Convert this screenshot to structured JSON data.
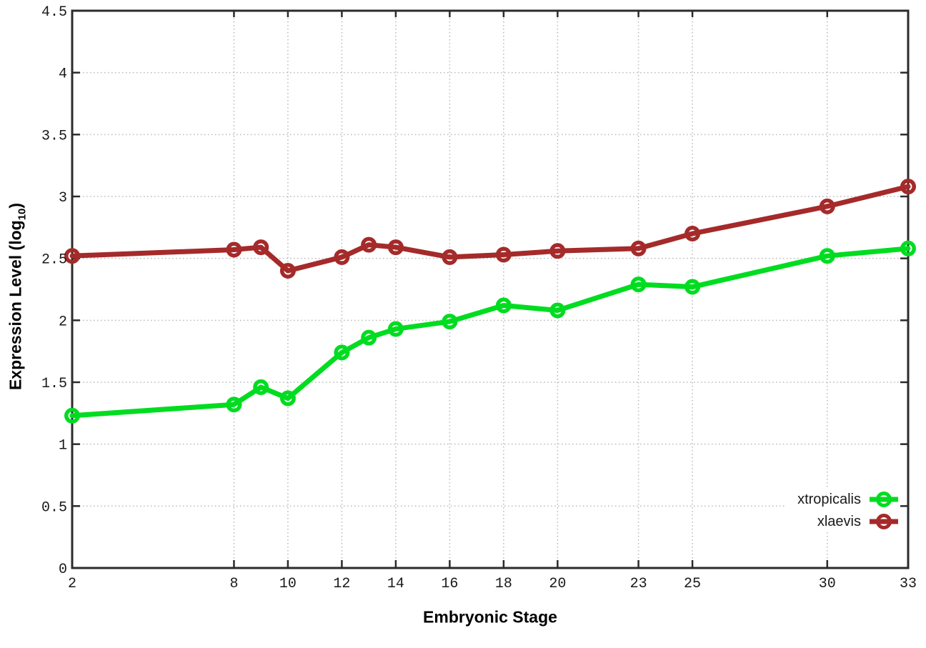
{
  "figure": {
    "background": "#ffffff",
    "border_color": "#2b2b2b",
    "grid_color": "#b8b8b8",
    "text_color": "#1a1a1a"
  },
  "chart_data": {
    "type": "line",
    "title": "",
    "xlabel": "Embryonic Stage",
    "ylabel_main": "Expression Level (log",
    "ylabel_sub": "10",
    "ylabel_end": ")",
    "x": [
      2,
      8,
      9,
      10,
      12,
      13,
      14,
      16,
      18,
      20,
      23,
      25,
      30,
      33
    ],
    "series": [
      {
        "name": "xtropicalis",
        "color": "#00dc20",
        "values": [
          1.23,
          1.32,
          1.46,
          1.37,
          1.74,
          1.86,
          1.93,
          1.99,
          2.12,
          2.08,
          2.29,
          2.27,
          2.52,
          2.58
        ]
      },
      {
        "name": "xlaevis",
        "color": "#a52a2a",
        "values": [
          2.52,
          2.57,
          2.59,
          2.4,
          2.51,
          2.61,
          2.59,
          2.51,
          2.53,
          2.56,
          2.58,
          2.7,
          2.92,
          3.08
        ]
      }
    ],
    "xlim": [
      2,
      33
    ],
    "ylim": [
      0,
      4.5
    ],
    "xticks": [
      2,
      8,
      10,
      12,
      14,
      16,
      18,
      20,
      23,
      25,
      30,
      33
    ],
    "xtick_labels": [
      "2",
      "8",
      "10",
      "12",
      "14",
      "16",
      "18",
      "20",
      "23",
      "25",
      "30",
      "33"
    ],
    "yticks": [
      0,
      0.5,
      1,
      1.5,
      2,
      2.5,
      3,
      3.5,
      4,
      4.5
    ],
    "ytick_labels": [
      "0",
      "0.5",
      "1",
      "1.5",
      "2",
      "2.5",
      "3",
      "3.5",
      "4",
      "4.5"
    ],
    "grid": true,
    "legend_position": "bottom-right"
  }
}
